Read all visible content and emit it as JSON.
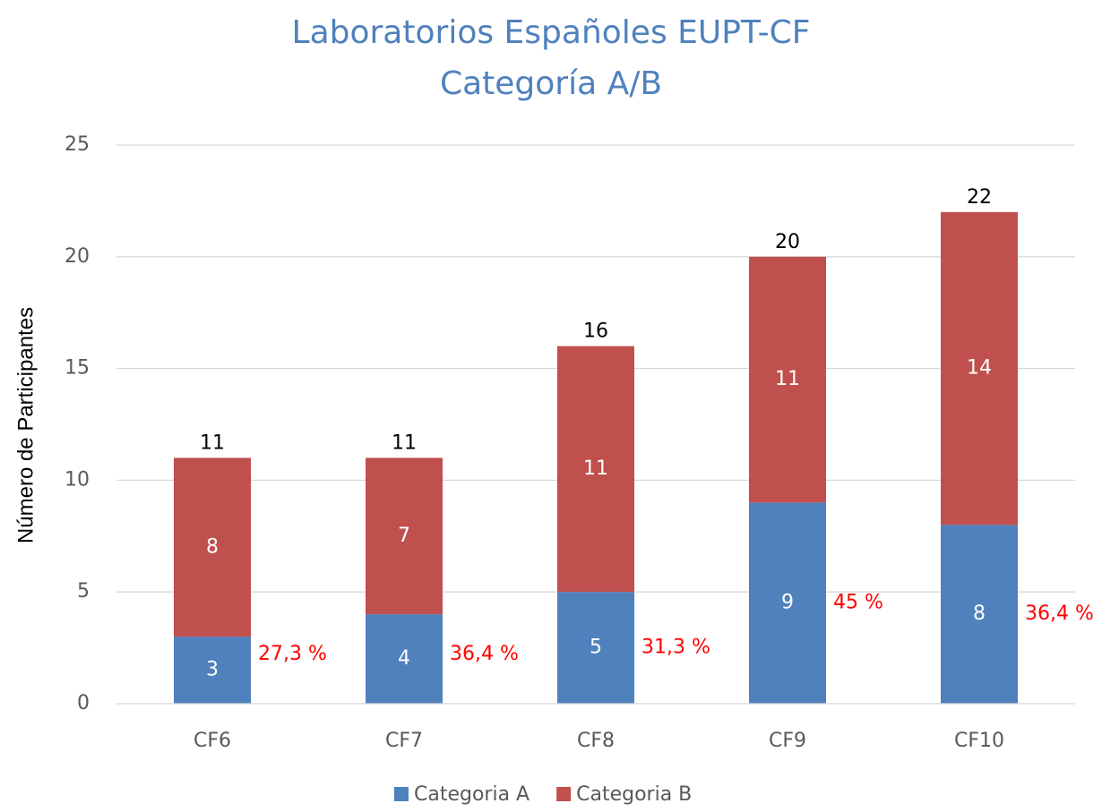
{
  "chart_data": {
    "type": "stacked_bar",
    "title_lines": [
      "Laboratorios Españoles EUPT-CF",
      "Categoría A/B"
    ],
    "y_label": "Número de Participantes",
    "categories": [
      "CF6",
      "CF7",
      "CF8",
      "CF9",
      "CF10"
    ],
    "series": [
      {
        "name": "Categoria A",
        "color": "#4f81bd",
        "values": [
          3,
          4,
          5,
          9,
          8
        ]
      },
      {
        "name": "Categoria B",
        "color": "#c0504d",
        "values": [
          8,
          7,
          11,
          11,
          14
        ]
      }
    ],
    "totals": [
      11,
      11,
      16,
      20,
      22
    ],
    "a_share_labels": [
      "27,3 %",
      "36,4 %",
      "31,3 %",
      "45 %",
      "36,4 %"
    ],
    "ylim": [
      0,
      25
    ],
    "yticks": [
      0,
      5,
      10,
      15,
      20,
      25
    ],
    "grid": true,
    "legend": "bottom"
  }
}
